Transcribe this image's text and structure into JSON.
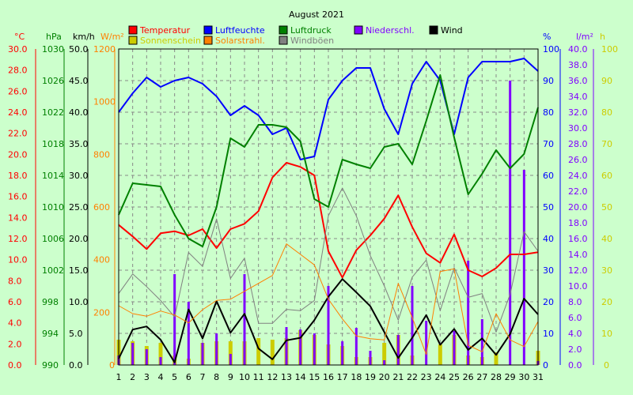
{
  "chart_data": {
    "type": "line",
    "title": "August 2021",
    "legend": [
      {
        "label": "Temperatur",
        "color": "#ff0000"
      },
      {
        "label": "Luftfeuchte",
        "color": "#0000ff"
      },
      {
        "label": "Luftdruck",
        "color": "#008000"
      },
      {
        "label": "Niederschl.",
        "color": "#8000ff"
      },
      {
        "label": "Wind",
        "color": "#000000"
      },
      {
        "label": "Sonnenschein",
        "color": "#cccc00"
      },
      {
        "label": "Solarstrahl.",
        "color": "#ff8000"
      },
      {
        "label": "Windböen",
        "color": "#808080"
      }
    ],
    "axes": {
      "temp": {
        "unit": "°C",
        "color": "#ff0000",
        "min": 0,
        "max": 30,
        "step": 2,
        "decimals": 1
      },
      "pressure": {
        "unit": "hPa",
        "color": "#008000",
        "min": 990,
        "max": 1030,
        "step": 4,
        "decimals": 0
      },
      "wind": {
        "unit": "km/h",
        "color": "#000000",
        "min": 0,
        "max": 50,
        "step": 5,
        "decimals": 1
      },
      "solar": {
        "unit": "W/m²",
        "color": "#ff8000",
        "min": 0,
        "max": 1200,
        "step": 200,
        "decimals": 0
      },
      "humidity": {
        "unit": "%",
        "color": "#0000ff",
        "min": 0,
        "max": 100,
        "step": 10,
        "decimals": 0
      },
      "rain": {
        "unit": "l/m²",
        "color": "#8000ff",
        "min": 0,
        "max": 40,
        "step": 2,
        "decimals": 1
      },
      "sun": {
        "unit": "h",
        "color": "#cccc00",
        "min": 0,
        "max": 100,
        "step": 10,
        "decimals": 0
      }
    },
    "days": [
      1,
      2,
      3,
      4,
      5,
      6,
      7,
      8,
      9,
      10,
      11,
      12,
      13,
      14,
      15,
      16,
      17,
      18,
      19,
      20,
      21,
      22,
      23,
      24,
      25,
      26,
      27,
      28,
      29,
      30,
      31
    ],
    "series": [
      {
        "name": "Temperatur",
        "axis": "temp",
        "color": "#ff0000",
        "kind": "line",
        "width": 2,
        "values": [
          13.3,
          12.2,
          11.0,
          12.5,
          12.7,
          12.3,
          12.9,
          11.1,
          12.9,
          13.4,
          14.6,
          17.8,
          19.2,
          18.8,
          18.0,
          10.8,
          8.3,
          10.9,
          12.3,
          13.9,
          16.1,
          13.1,
          10.6,
          9.7,
          12.4,
          9.0,
          8.4,
          9.2,
          10.5,
          10.5,
          10.7
        ]
      },
      {
        "name": "Luftfeuchte",
        "axis": "humidity",
        "color": "#0000ff",
        "kind": "line",
        "width": 2,
        "values": [
          80,
          86,
          91,
          88,
          90,
          91,
          89,
          85,
          79,
          82,
          79,
          73,
          75,
          65,
          66,
          84,
          90,
          94,
          94,
          81,
          73,
          89,
          96,
          90,
          73,
          91,
          96,
          96,
          96,
          97,
          93
        ]
      },
      {
        "name": "Luftdruck",
        "axis": "pressure",
        "color": "#008000",
        "kind": "line",
        "width": 2,
        "values": [
          1009,
          1013,
          1012.8,
          1012.6,
          1009,
          1006,
          1005,
          1010,
          1018.7,
          1017.6,
          1020.4,
          1020.4,
          1020.1,
          1018.3,
          1011,
          1010,
          1016,
          1015.4,
          1014.9,
          1017.6,
          1018,
          1015.4,
          1020.9,
          1026.7,
          1018.8,
          1011.6,
          1014.2,
          1017.2,
          1014.9,
          1016.7,
          1022.6
        ]
      },
      {
        "name": "Wind",
        "axis": "wind",
        "color": "#000000",
        "kind": "line",
        "width": 2,
        "values": [
          1.0,
          5.6,
          6.1,
          4.0,
          0.4,
          8.8,
          4.2,
          10.1,
          5.1,
          8.1,
          2.6,
          0.9,
          3.9,
          4.3,
          7.1,
          10.8,
          13.6,
          11.5,
          9.3,
          5.2,
          1.1,
          4.3,
          7.9,
          3.2,
          5.7,
          2.4,
          4.2,
          1.6,
          4.9,
          10.5,
          8.0
        ]
      },
      {
        "name": "Windböen",
        "axis": "wind",
        "color": "#808080",
        "kind": "line",
        "width": 1,
        "values": [
          11.3,
          14.4,
          12.4,
          10.2,
          7.6,
          17.8,
          15.6,
          23.1,
          13.7,
          16.9,
          6.6,
          6.6,
          8.8,
          8.6,
          10.2,
          23.6,
          28.0,
          23.6,
          17.3,
          12.5,
          7.1,
          13.9,
          16.6,
          8.6,
          15.4,
          10.7,
          11.3,
          5.2,
          11.2,
          21.1,
          18.0
        ]
      },
      {
        "name": "Solarstrahl.",
        "axis": "solar",
        "color": "#ff8000",
        "kind": "line",
        "width": 1,
        "values": [
          225,
          195,
          185,
          205,
          190,
          160,
          210,
          245,
          250,
          280,
          310,
          340,
          460,
          420,
          380,
          250,
          175,
          110,
          100,
          95,
          310,
          180,
          40,
          355,
          365,
          75,
          50,
          195,
          95,
          70,
          165
        ]
      },
      {
        "name": "Sonnenschein",
        "axis": "sun",
        "color": "#cccc00",
        "kind": "bar",
        "values": [
          8,
          7.5,
          6,
          7,
          3,
          2,
          7,
          7.5,
          7.5,
          7.5,
          8.5,
          8,
          8.5,
          11,
          9.5,
          6.5,
          6,
          2.5,
          2.5,
          7,
          9.5,
          3,
          0,
          6.5,
          9.5,
          3,
          2.5,
          4,
          0,
          0,
          4.5
        ]
      },
      {
        "name": "Niederschl.",
        "axis": "rain",
        "color": "#8000ff",
        "kind": "bar",
        "values": [
          1.2,
          2.8,
          2.0,
          1.0,
          11.5,
          8.0,
          2.8,
          4.0,
          1.4,
          11.5,
          0,
          0,
          4.8,
          4.5,
          4.0,
          10.0,
          3.0,
          4.7,
          1.8,
          0.6,
          3.8,
          10.0,
          5.6,
          0,
          4.3,
          13.2,
          5.8,
          0,
          36.0,
          24.7,
          0.5
        ]
      }
    ]
  }
}
